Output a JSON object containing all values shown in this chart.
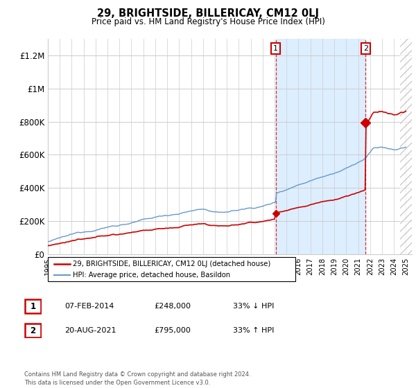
{
  "title": "29, BRIGHTSIDE, BILLERICAY, CM12 0LJ",
  "subtitle": "Price paid vs. HM Land Registry's House Price Index (HPI)",
  "legend_line1": "29, BRIGHTSIDE, BILLERICAY, CM12 0LJ (detached house)",
  "legend_line2": "HPI: Average price, detached house, Basildon",
  "annotation1": {
    "num": "1",
    "date": "07-FEB-2014",
    "price": "£248,000",
    "hpi": "33% ↓ HPI"
  },
  "annotation2": {
    "num": "2",
    "date": "20-AUG-2021",
    "price": "£795,000",
    "hpi": "33% ↑ HPI"
  },
  "footer": "Contains HM Land Registry data © Crown copyright and database right 2024.\nThis data is licensed under the Open Government Licence v3.0.",
  "sale1_year": 2014.1,
  "sale1_price": 248000,
  "sale2_year": 2021.63,
  "sale2_price": 795000,
  "red_line_color": "#cc0000",
  "blue_line_color": "#6699cc",
  "shaded_region_color": "#ddeeff",
  "dashed_line_color": "#cc0000",
  "background_color": "#ffffff",
  "grid_color": "#cccccc",
  "ylim": [
    0,
    1300000
  ],
  "yticks": [
    0,
    200000,
    400000,
    600000,
    800000,
    1000000,
    1200000
  ],
  "ytick_labels": [
    "£0",
    "£200K",
    "£400K",
    "£600K",
    "£800K",
    "£1M",
    "£1.2M"
  ],
  "year_start": 1995,
  "year_end": 2025
}
